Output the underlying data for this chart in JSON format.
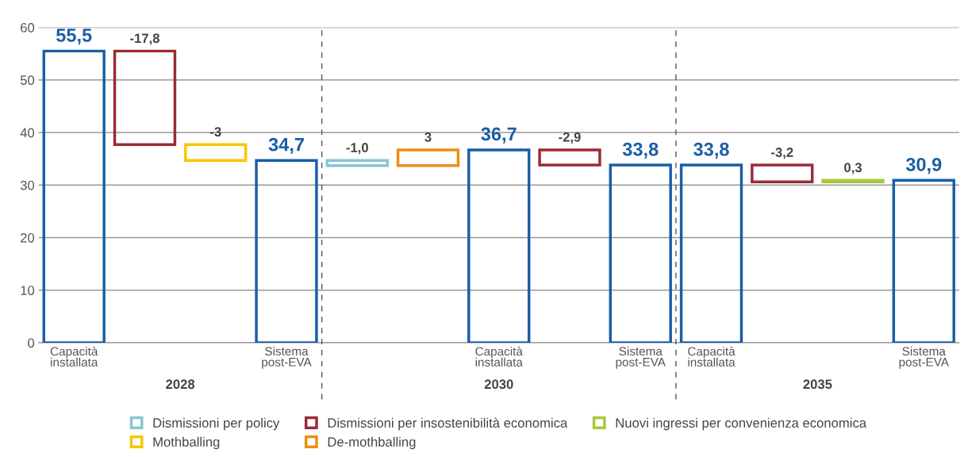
{
  "chart_data": {
    "type": "bar",
    "categories": [
      "Capacità\ninstallata",
      null,
      null,
      "Sistema\npost-EVA",
      null,
      null,
      "Capacità\ninstallata",
      null,
      "Sistema\npost-EVA",
      "Capacità\ninstallata",
      null,
      null,
      "Sistema\npost-EVA"
    ],
    "series": [
      {
        "color": "#1a5ea8",
        "values": [
          55.5,
          null,
          null,
          34.7,
          null,
          null,
          36.7,
          null,
          33.8,
          33.8,
          null,
          null,
          30.9
        ],
        "value_labels": [
          "55,5",
          null,
          null,
          "34,7",
          null,
          null,
          "36,7",
          null,
          "33,8",
          "33,8",
          null,
          null,
          "30,9"
        ]
      },
      {
        "name": "Dismissioni per policy",
        "color": "#86c5d6",
        "values": [
          null,
          null,
          null,
          null,
          -1.0,
          null,
          null,
          null,
          null,
          null,
          null,
          null,
          null
        ],
        "base": [
          null,
          null,
          null,
          null,
          34.7,
          null,
          null,
          null,
          null,
          null,
          null,
          null,
          null
        ],
        "value_labels": [
          null,
          null,
          null,
          null,
          "-1,0",
          null,
          null,
          null,
          null,
          null,
          null,
          null,
          null
        ]
      },
      {
        "name": "Dismissioni per insostenibilità economica",
        "color": "#9b2b35",
        "values": [
          null,
          -17.8,
          null,
          null,
          null,
          null,
          null,
          -2.9,
          null,
          null,
          -3.2,
          null,
          null
        ],
        "base": [
          null,
          55.5,
          null,
          null,
          null,
          null,
          null,
          36.7,
          null,
          null,
          33.8,
          null,
          null
        ],
        "value_labels": [
          null,
          "-17,8",
          null,
          null,
          null,
          null,
          null,
          "-2,9",
          null,
          null,
          "-3,2",
          null,
          null
        ]
      },
      {
        "name": "Nuovi ingressi per convenienza economica",
        "color": "#a8c83c",
        "values": [
          null,
          null,
          null,
          null,
          null,
          null,
          null,
          null,
          null,
          null,
          null,
          0.3,
          null
        ],
        "base": [
          null,
          null,
          null,
          null,
          null,
          null,
          null,
          null,
          null,
          null,
          null,
          30.6,
          null
        ],
        "value_labels": [
          null,
          null,
          null,
          null,
          null,
          null,
          null,
          null,
          null,
          null,
          null,
          "0,3",
          null
        ]
      },
      {
        "name": "Mothballing",
        "color": "#f7c600",
        "values": [
          null,
          null,
          -3,
          null,
          null,
          null,
          null,
          null,
          null,
          null,
          null,
          null,
          null
        ],
        "base": [
          null,
          null,
          37.7,
          null,
          null,
          null,
          null,
          null,
          null,
          null,
          null,
          null,
          null
        ],
        "value_labels": [
          null,
          null,
          "-3",
          null,
          null,
          null,
          null,
          null,
          null,
          null,
          null,
          null,
          null
        ]
      },
      {
        "name": "De-mothballing",
        "color": "#f08c14",
        "values": [
          null,
          null,
          null,
          null,
          null,
          3,
          null,
          null,
          null,
          null,
          null,
          null,
          null
        ],
        "base": [
          null,
          null,
          null,
          null,
          null,
          33.7,
          null,
          null,
          null,
          null,
          null,
          null,
          null
        ],
        "value_labels": [
          null,
          null,
          null,
          null,
          null,
          "3",
          null,
          null,
          null,
          null,
          null,
          null,
          null
        ]
      }
    ],
    "ylim": [
      0,
      60
    ],
    "yticks": [
      0,
      10,
      20,
      30,
      40,
      50,
      60
    ],
    "grid": "y",
    "legend": "bottom",
    "annotations": [
      "2028",
      "2030",
      "2035"
    ]
  }
}
